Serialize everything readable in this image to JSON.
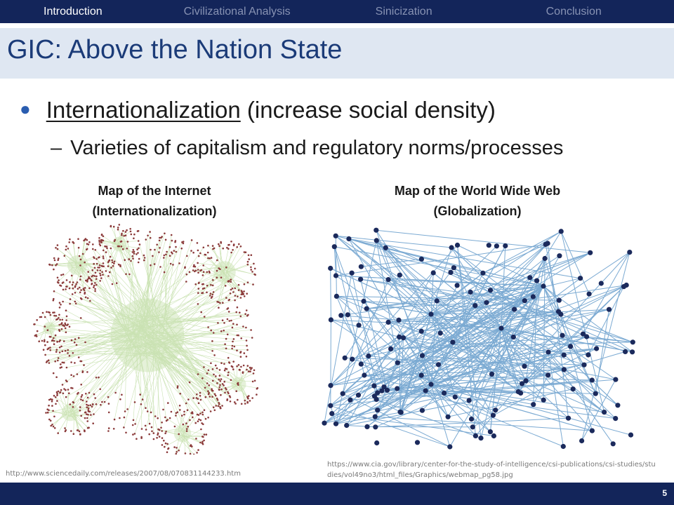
{
  "nav": {
    "items": [
      {
        "label": "Introduction",
        "active": true
      },
      {
        "label": "Civilizational Analysis",
        "active": false
      },
      {
        "label": "Sinicization",
        "active": false
      },
      {
        "label": "Conclusion",
        "active": false
      }
    ]
  },
  "slide": {
    "title": "GIC: Above the Nation State",
    "bullet1": {
      "underlined": "Internationalization",
      "rest": " (increase social density)"
    },
    "bullet2": {
      "dash": "–",
      "text": "Varieties of capitalism and regulatory norms/processes"
    }
  },
  "figures": {
    "left": {
      "caption_line1": "Map of the Internet",
      "caption_line2": "(Internationalization)",
      "source": "http://www.sciencedaily.com/releases/2007/08/070831144233.htm",
      "edge_color": "#b9d99a",
      "node_color": "#8b3a3a"
    },
    "right": {
      "caption_line1": "Map of the World Wide Web",
      "caption_line2": "(Globalization)",
      "source": "https://www.cia.gov/library/center-for-the-study-of-intelligence/csi-publications/csi-studies/studies/vol49no3/html_files/Graphics/webmap_pg58.jpg",
      "edge_color": "#5b95c8",
      "node_color": "#1b2a5c"
    }
  },
  "footer": {
    "page_number": "5"
  },
  "colors": {
    "nav_bg": "#13255a",
    "title_band": "#dfe7f2",
    "title_text": "#1b3b78",
    "bullet": "#2a5db0"
  }
}
